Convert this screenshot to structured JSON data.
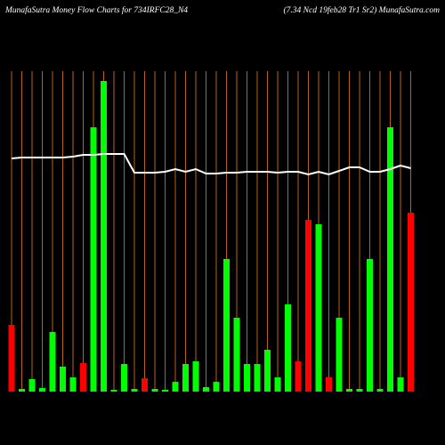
{
  "chart_data": {
    "type": "bar",
    "title": "MunafaSutra  Money Flow  Charts for 734IRFC28_N4",
    "subtitle": "(7.34  Ncd 19feb28  Tr1 Sr2) MunafaSutra.com",
    "categories": [
      null,
      null,
      null,
      null,
      null,
      null,
      null,
      null,
      null,
      null,
      null,
      null,
      null,
      null,
      null,
      null,
      null,
      null,
      null,
      null,
      null,
      null,
      null,
      null,
      null,
      null,
      null,
      null,
      null,
      null,
      null,
      null,
      null,
      null,
      null,
      null,
      null,
      null,
      null,
      null
    ],
    "values": [
      75,
      3,
      14,
      4,
      67,
      28,
      16,
      32,
      297,
      349,
      2,
      31,
      3,
      15,
      3,
      2,
      11,
      31,
      34,
      5,
      11,
      149,
      83,
      31,
      31,
      47,
      16,
      98,
      34,
      193,
      188,
      16,
      83,
      3,
      3,
      149,
      3,
      297,
      16,
      201
    ],
    "colors": [
      "#ff0000",
      "#00ff00",
      "#00ff00",
      "#00ff00",
      "#00ff00",
      "#00ff00",
      "#00ff00",
      "#ff0000",
      "#00ff00",
      "#00ff00",
      "#00ff00",
      "#00ff00",
      "#00ff00",
      "#ff0000",
      "#00ff00",
      "#00ff00",
      "#00ff00",
      "#00ff00",
      "#00ff00",
      "#00ff00",
      "#00ff00",
      "#00ff00",
      "#00ff00",
      "#00ff00",
      "#00ff00",
      "#00ff00",
      "#00ff00",
      "#00ff00",
      "#ff0000",
      "#ff0000",
      "#00ff00",
      "#ff0000",
      "#00ff00",
      "#00ff00",
      "#00ff00",
      "#00ff00",
      "#00ff00",
      "#00ff00",
      "#00ff00",
      "#ff0000"
    ],
    "line_values": [
      262,
      263,
      263,
      263,
      263,
      263,
      264,
      266,
      266,
      267,
      267,
      267,
      246,
      246,
      246,
      247,
      250,
      247,
      250,
      245,
      245,
      246,
      246,
      247,
      247,
      247,
      246,
      247,
      247,
      244,
      247,
      244,
      248,
      252,
      252,
      247,
      247,
      250,
      254,
      251
    ],
    "line_color": "#ffffff",
    "grid_color": "#b8621b",
    "ylim": [
      0,
      360
    ]
  }
}
